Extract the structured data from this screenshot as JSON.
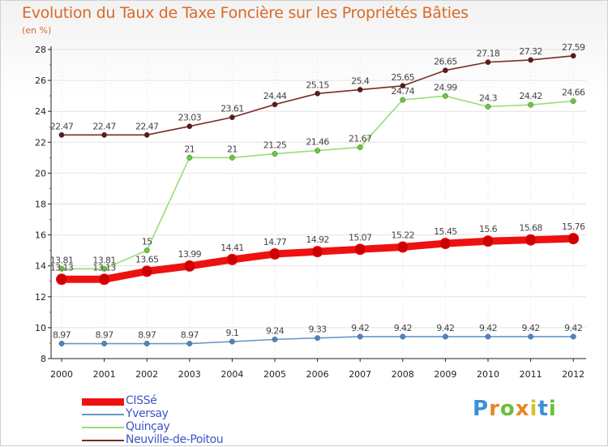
{
  "header": {
    "title": "Evolution du Taux de Taxe Foncière sur les Propriétés Bâties",
    "unit": "(en %)"
  },
  "brand": {
    "text": "Proxiti"
  },
  "chart_data": {
    "type": "line",
    "title": "Evolution du Taux de Taxe Foncière sur les Propriétés Bâties",
    "ylabel": "(en %)",
    "xlabel": "",
    "ylim": [
      8,
      28
    ],
    "y_ticks": [
      8,
      10,
      12,
      14,
      16,
      18,
      20,
      22,
      24,
      26,
      28
    ],
    "categories": [
      "2000",
      "2001",
      "2002",
      "2003",
      "2004",
      "2005",
      "2006",
      "2007",
      "2008",
      "2009",
      "2010",
      "2011",
      "2012"
    ],
    "legend_position": "bottom-left",
    "grid": "horizontal",
    "series": [
      {
        "name": "CISSé",
        "color": "#ee1111",
        "marker_color": "#cc0000",
        "emphasis": "thick",
        "values": [
          13.13,
          13.13,
          13.65,
          13.99,
          14.41,
          14.77,
          14.92,
          15.07,
          15.22,
          15.45,
          15.6,
          15.68,
          15.76
        ],
        "labels": [
          "13.13",
          "13.13",
          "13.65",
          "13.99",
          "14.41",
          "14.77",
          "14.92",
          "15.07",
          "15.22",
          "15.45",
          "15.6",
          "15.68",
          "15.76"
        ]
      },
      {
        "name": "Yversay",
        "color": "#6699cc",
        "marker_color": "#4a86c4",
        "emphasis": "normal",
        "values": [
          8.97,
          8.97,
          8.97,
          8.97,
          9.1,
          9.24,
          9.33,
          9.42,
          9.42,
          9.42,
          9.42,
          9.42,
          9.42
        ],
        "labels": [
          "8.97",
          "8.97",
          "8.97",
          "8.97",
          "9.1",
          "9.24",
          "9.33",
          "9.42",
          "9.42",
          "9.42",
          "9.42",
          "9.42",
          "9.42"
        ]
      },
      {
        "name": "Quinçay",
        "color": "#99dd77",
        "marker_color": "#66cc33",
        "emphasis": "normal",
        "values": [
          13.81,
          13.81,
          15,
          21,
          21,
          21.25,
          21.46,
          21.67,
          24.74,
          24.99,
          24.3,
          24.42,
          24.66
        ],
        "labels": [
          "13.81",
          "13.81",
          "15",
          "21",
          "21",
          "21.25",
          "21.46",
          "21.67",
          "24.74",
          "24.99",
          "24.3",
          "24.42",
          "24.66"
        ]
      },
      {
        "name": "Neuville-de-Poitou",
        "color": "#7a2a2a",
        "marker_color": "#5a1a1a",
        "emphasis": "normal",
        "values": [
          22.47,
          22.47,
          22.47,
          23.03,
          23.61,
          24.44,
          25.15,
          25.4,
          25.65,
          26.65,
          27.18,
          27.32,
          27.59
        ],
        "labels": [
          "22.47",
          "22.47",
          "22.47",
          "23.03",
          "23.61",
          "24.44",
          "25.15",
          "25.4",
          "25.65",
          "26.65",
          "27.18",
          "27.32",
          "27.59"
        ]
      }
    ]
  }
}
